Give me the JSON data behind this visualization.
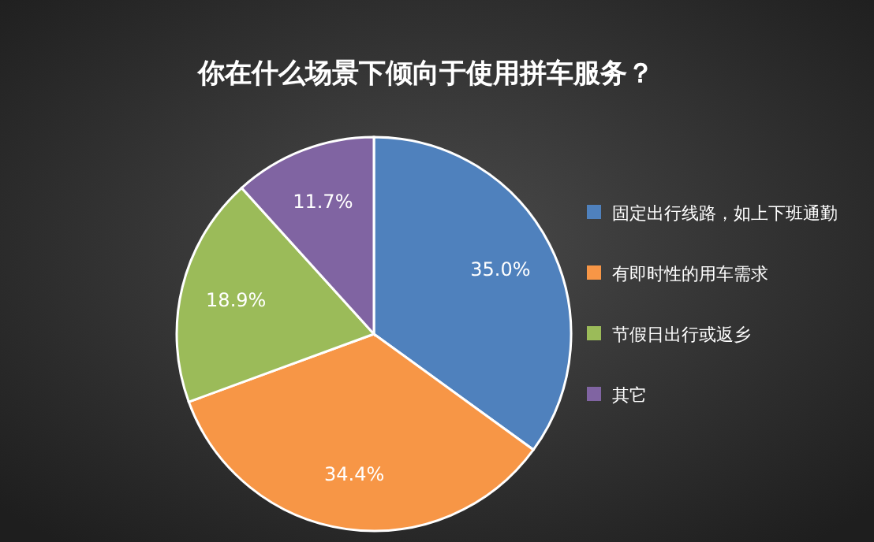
{
  "chart_data": {
    "type": "pie",
    "title": "你在什么场景下倾向于使用拼车服务？",
    "categories": [
      "固定出行线路，如上下班通勤",
      "有即时性的用车需求",
      "节假日出行或返乡",
      "其它"
    ],
    "values": [
      35.0,
      34.4,
      18.9,
      11.7
    ],
    "value_labels": [
      "35.0%",
      "34.4%",
      "18.9%",
      "11.7%"
    ],
    "colors": [
      "#4f81bd",
      "#f79646",
      "#9bbb59",
      "#8064a2"
    ],
    "legend": "right"
  }
}
